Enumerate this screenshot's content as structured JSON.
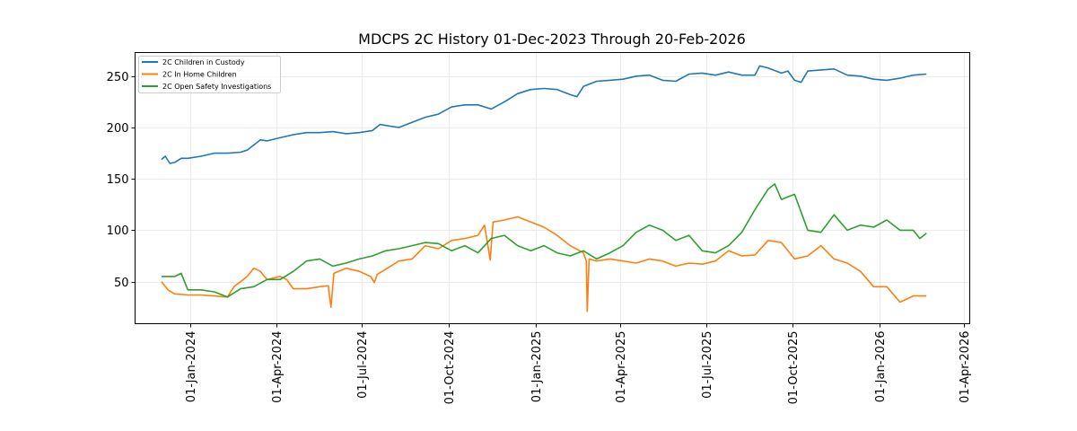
{
  "chart_data": {
    "type": "line",
    "title": "MDCPS 2C History 01-Dec-2023 Through 20-Feb-2026",
    "xlabel": "",
    "ylabel": "",
    "x_type": "date",
    "xlim": [
      "2023-11-03",
      "2026-04-07"
    ],
    "ylim": [
      9,
      273
    ],
    "grid": true,
    "legend_position": "top-left",
    "xticks": [
      {
        "date": "2024-01-01",
        "label": "01-Jan-2024"
      },
      {
        "date": "2024-04-01",
        "label": "01-Apr-2024"
      },
      {
        "date": "2024-07-01",
        "label": "01-Jul-2024"
      },
      {
        "date": "2024-10-01",
        "label": "01-Oct-2024"
      },
      {
        "date": "2025-01-01",
        "label": "01-Jan-2025"
      },
      {
        "date": "2025-04-01",
        "label": "01-Apr-2025"
      },
      {
        "date": "2025-07-01",
        "label": "01-Jul-2025"
      },
      {
        "date": "2025-10-01",
        "label": "01-Oct-2025"
      },
      {
        "date": "2026-01-01",
        "label": "01-Jan-2026"
      },
      {
        "date": "2026-04-01",
        "label": "01-Apr-2026"
      }
    ],
    "yticks": [
      {
        "value": 50,
        "label": "50"
      },
      {
        "value": 100,
        "label": "100"
      },
      {
        "value": 150,
        "label": "150"
      },
      {
        "value": 200,
        "label": "200"
      },
      {
        "value": 250,
        "label": "250"
      }
    ],
    "series": [
      {
        "name": "2C Children in Custody",
        "color": "#1f77b4",
        "points": [
          [
            "2023-12-01",
            169
          ],
          [
            "2023-12-05",
            172
          ],
          [
            "2023-12-10",
            165
          ],
          [
            "2023-12-15",
            166
          ],
          [
            "2023-12-22",
            170
          ],
          [
            "2023-12-29",
            170
          ],
          [
            "2024-01-12",
            172
          ],
          [
            "2024-01-26",
            175
          ],
          [
            "2024-02-09",
            175
          ],
          [
            "2024-02-23",
            176
          ],
          [
            "2024-03-01",
            178
          ],
          [
            "2024-03-08",
            183
          ],
          [
            "2024-03-15",
            188
          ],
          [
            "2024-03-22",
            187
          ],
          [
            "2024-04-05",
            190
          ],
          [
            "2024-04-19",
            193
          ],
          [
            "2024-05-03",
            195
          ],
          [
            "2024-05-17",
            195
          ],
          [
            "2024-05-31",
            196
          ],
          [
            "2024-06-14",
            194
          ],
          [
            "2024-06-28",
            195
          ],
          [
            "2024-07-12",
            197
          ],
          [
            "2024-07-20",
            203
          ],
          [
            "2024-07-26",
            202
          ],
          [
            "2024-08-09",
            200
          ],
          [
            "2024-08-23",
            205
          ],
          [
            "2024-09-06",
            210
          ],
          [
            "2024-09-20",
            213
          ],
          [
            "2024-10-04",
            220
          ],
          [
            "2024-10-18",
            222
          ],
          [
            "2024-11-01",
            222
          ],
          [
            "2024-11-15",
            218
          ],
          [
            "2024-11-29",
            225
          ],
          [
            "2024-12-13",
            233
          ],
          [
            "2024-12-27",
            237
          ],
          [
            "2025-01-10",
            238
          ],
          [
            "2025-01-24",
            237
          ],
          [
            "2025-02-07",
            232
          ],
          [
            "2025-02-14",
            230
          ],
          [
            "2025-02-21",
            240
          ],
          [
            "2025-03-07",
            245
          ],
          [
            "2025-03-21",
            246
          ],
          [
            "2025-04-04",
            247
          ],
          [
            "2025-04-18",
            250
          ],
          [
            "2025-05-02",
            251
          ],
          [
            "2025-05-16",
            246
          ],
          [
            "2025-05-30",
            245
          ],
          [
            "2025-06-13",
            252
          ],
          [
            "2025-06-27",
            253
          ],
          [
            "2025-07-11",
            251
          ],
          [
            "2025-07-25",
            254
          ],
          [
            "2025-08-08",
            251
          ],
          [
            "2025-08-22",
            251
          ],
          [
            "2025-08-27",
            260
          ],
          [
            "2025-09-05",
            258
          ],
          [
            "2025-09-19",
            253
          ],
          [
            "2025-09-26",
            255
          ],
          [
            "2025-10-03",
            246
          ],
          [
            "2025-10-10",
            244
          ],
          [
            "2025-10-17",
            255
          ],
          [
            "2025-10-31",
            256
          ],
          [
            "2025-11-14",
            257
          ],
          [
            "2025-11-28",
            251
          ],
          [
            "2025-12-12",
            250
          ],
          [
            "2025-12-26",
            247
          ],
          [
            "2026-01-09",
            246
          ],
          [
            "2026-01-23",
            248
          ],
          [
            "2026-02-06",
            251
          ],
          [
            "2026-02-20",
            252
          ]
        ]
      },
      {
        "name": "2C In Home Children",
        "color": "#ff7f0e",
        "points": [
          [
            "2023-12-01",
            50
          ],
          [
            "2023-12-08",
            42
          ],
          [
            "2023-12-15",
            38
          ],
          [
            "2023-12-29",
            37
          ],
          [
            "2024-01-12",
            37
          ],
          [
            "2024-01-26",
            36
          ],
          [
            "2024-02-09",
            35
          ],
          [
            "2024-02-16",
            45
          ],
          [
            "2024-02-23",
            50
          ],
          [
            "2024-03-01",
            55
          ],
          [
            "2024-03-08",
            63
          ],
          [
            "2024-03-15",
            60
          ],
          [
            "2024-03-22",
            52
          ],
          [
            "2024-04-05",
            55
          ],
          [
            "2024-04-12",
            52
          ],
          [
            "2024-04-19",
            43
          ],
          [
            "2024-05-03",
            43
          ],
          [
            "2024-05-17",
            45
          ],
          [
            "2024-05-26",
            46
          ],
          [
            "2024-05-29",
            25
          ],
          [
            "2024-06-01",
            58
          ],
          [
            "2024-06-14",
            63
          ],
          [
            "2024-06-28",
            60
          ],
          [
            "2024-07-10",
            55
          ],
          [
            "2024-07-14",
            49
          ],
          [
            "2024-07-17",
            57
          ],
          [
            "2024-07-26",
            62
          ],
          [
            "2024-08-09",
            70
          ],
          [
            "2024-08-23",
            72
          ],
          [
            "2024-09-06",
            85
          ],
          [
            "2024-09-20",
            82
          ],
          [
            "2024-10-04",
            90
          ],
          [
            "2024-10-18",
            92
          ],
          [
            "2024-11-01",
            95
          ],
          [
            "2024-11-08",
            105
          ],
          [
            "2024-11-14",
            71
          ],
          [
            "2024-11-17",
            108
          ],
          [
            "2024-11-29",
            110
          ],
          [
            "2024-12-13",
            113
          ],
          [
            "2024-12-27",
            108
          ],
          [
            "2025-01-10",
            103
          ],
          [
            "2025-01-24",
            95
          ],
          [
            "2025-02-07",
            85
          ],
          [
            "2025-02-21",
            78
          ],
          [
            "2025-02-24",
            70
          ],
          [
            "2025-02-25",
            21
          ],
          [
            "2025-02-27",
            72
          ],
          [
            "2025-03-07",
            70
          ],
          [
            "2025-03-21",
            72
          ],
          [
            "2025-04-04",
            70
          ],
          [
            "2025-04-18",
            68
          ],
          [
            "2025-05-02",
            72
          ],
          [
            "2025-05-16",
            70
          ],
          [
            "2025-05-30",
            65
          ],
          [
            "2025-06-13",
            68
          ],
          [
            "2025-06-27",
            67
          ],
          [
            "2025-07-11",
            70
          ],
          [
            "2025-07-25",
            80
          ],
          [
            "2025-08-08",
            75
          ],
          [
            "2025-08-22",
            76
          ],
          [
            "2025-09-05",
            90
          ],
          [
            "2025-09-19",
            88
          ],
          [
            "2025-10-03",
            72
          ],
          [
            "2025-10-17",
            75
          ],
          [
            "2025-10-31",
            85
          ],
          [
            "2025-11-14",
            72
          ],
          [
            "2025-11-28",
            68
          ],
          [
            "2025-12-12",
            60
          ],
          [
            "2025-12-26",
            45
          ],
          [
            "2026-01-09",
            45
          ],
          [
            "2026-01-23",
            30
          ],
          [
            "2026-02-06",
            36
          ],
          [
            "2026-02-20",
            36
          ]
        ]
      },
      {
        "name": "2C Open Safety Investigations",
        "color": "#2ca02c",
        "points": [
          [
            "2023-12-01",
            55
          ],
          [
            "2023-12-15",
            55
          ],
          [
            "2023-12-22",
            58
          ],
          [
            "2023-12-29",
            42
          ],
          [
            "2024-01-12",
            42
          ],
          [
            "2024-01-26",
            40
          ],
          [
            "2024-02-09",
            35
          ],
          [
            "2024-02-23",
            43
          ],
          [
            "2024-03-08",
            45
          ],
          [
            "2024-03-22",
            52
          ],
          [
            "2024-04-05",
            52
          ],
          [
            "2024-04-19",
            60
          ],
          [
            "2024-05-03",
            70
          ],
          [
            "2024-05-17",
            72
          ],
          [
            "2024-05-31",
            65
          ],
          [
            "2024-06-14",
            68
          ],
          [
            "2024-06-28",
            72
          ],
          [
            "2024-07-12",
            75
          ],
          [
            "2024-07-26",
            80
          ],
          [
            "2024-08-09",
            82
          ],
          [
            "2024-08-23",
            85
          ],
          [
            "2024-09-06",
            88
          ],
          [
            "2024-09-20",
            87
          ],
          [
            "2024-10-04",
            80
          ],
          [
            "2024-10-18",
            85
          ],
          [
            "2024-11-01",
            78
          ],
          [
            "2024-11-15",
            92
          ],
          [
            "2024-11-29",
            95
          ],
          [
            "2024-12-13",
            85
          ],
          [
            "2024-12-27",
            80
          ],
          [
            "2025-01-10",
            85
          ],
          [
            "2025-01-24",
            78
          ],
          [
            "2025-02-07",
            75
          ],
          [
            "2025-02-21",
            80
          ],
          [
            "2025-03-07",
            72
          ],
          [
            "2025-03-21",
            78
          ],
          [
            "2025-04-04",
            85
          ],
          [
            "2025-04-18",
            98
          ],
          [
            "2025-05-02",
            105
          ],
          [
            "2025-05-16",
            100
          ],
          [
            "2025-05-30",
            90
          ],
          [
            "2025-06-13",
            95
          ],
          [
            "2025-06-27",
            80
          ],
          [
            "2025-07-11",
            78
          ],
          [
            "2025-07-25",
            85
          ],
          [
            "2025-08-08",
            98
          ],
          [
            "2025-08-22",
            120
          ],
          [
            "2025-09-05",
            140
          ],
          [
            "2025-09-12",
            145
          ],
          [
            "2025-09-19",
            130
          ],
          [
            "2025-10-03",
            135
          ],
          [
            "2025-10-17",
            100
          ],
          [
            "2025-10-31",
            98
          ],
          [
            "2025-11-14",
            115
          ],
          [
            "2025-11-28",
            100
          ],
          [
            "2025-12-12",
            105
          ],
          [
            "2025-12-26",
            103
          ],
          [
            "2026-01-09",
            110
          ],
          [
            "2026-01-23",
            100
          ],
          [
            "2026-02-06",
            100
          ],
          [
            "2026-02-13",
            92
          ],
          [
            "2026-02-20",
            97
          ]
        ]
      }
    ]
  }
}
